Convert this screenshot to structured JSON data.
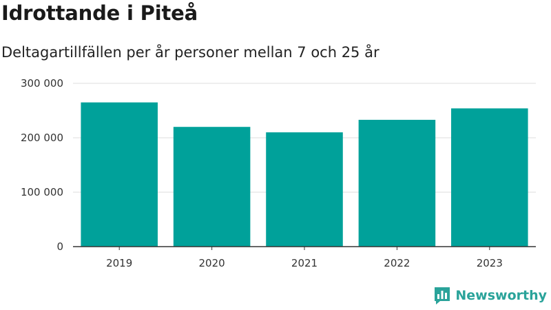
{
  "header": {
    "title": "Idrottande i Piteå",
    "subtitle": "Deltagartillfällen per år personer mellan 7 och 25 år"
  },
  "brand": {
    "name": "Newsworthy",
    "logo_icon": "bar-chart-flag-icon",
    "color": "#2aa39a"
  },
  "colors": {
    "bar": "#00a19a",
    "grid": "#dddddd",
    "axis": "#333333"
  },
  "chart_data": {
    "type": "bar",
    "categories": [
      "2019",
      "2020",
      "2021",
      "2022",
      "2023"
    ],
    "values": [
      265000,
      220000,
      210000,
      233000,
      254000
    ],
    "ylim": [
      0,
      300000
    ],
    "yticks": [
      0,
      100000,
      200000,
      300000
    ],
    "ytick_labels": [
      "0",
      "100 000",
      "200 000",
      "300 000"
    ],
    "grid": true,
    "legend": "none"
  }
}
